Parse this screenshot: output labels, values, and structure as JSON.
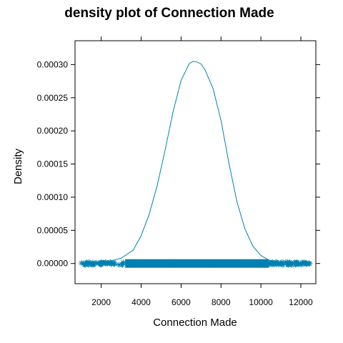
{
  "chart_data": {
    "type": "line",
    "title": "density plot of Connection Made",
    "xlabel": "Connection Made",
    "ylabel": "Density",
    "xlim": [
      688,
      12752
    ],
    "ylim": [
      -3.05e-05,
      0.000336
    ],
    "grid": false,
    "legend": "none",
    "colors": {
      "series": "#0080B0",
      "axis": "#000000",
      "background": "#FFFFFF"
    },
    "x_ticks": [
      2000,
      4000,
      6000,
      8000,
      10000,
      12000
    ],
    "x_tick_labels": [
      "2000",
      "4000",
      "6000",
      "8000",
      "10000",
      "12000"
    ],
    "y_ticks": [
      0,
      5e-05,
      0.0001,
      0.00015,
      0.0002,
      0.00025,
      0.0003
    ],
    "y_tick_labels": [
      "0.00000",
      "0.00005",
      "0.00010",
      "0.00015",
      "0.00020",
      "0.00025",
      "0.00030"
    ],
    "series": [
      {
        "x": [
          1240,
          1800,
          2400,
          3000,
          3600,
          4000,
          4400,
          4800,
          5200,
          5600,
          6000,
          6400,
          6600,
          6800,
          7000,
          7200,
          7600,
          8000,
          8400,
          8800,
          9200,
          9600,
          10000,
          10400,
          10800,
          11400,
          12300
        ],
        "y": [
          5e-07,
          1e-06,
          3e-06,
          8e-06,
          2e-05,
          4.2e-05,
          7.4e-05,
          0.000117,
          0.000171,
          0.000229,
          0.000276,
          0.000301,
          0.000305,
          0.000304,
          0.000301,
          0.000292,
          0.000264,
          0.000216,
          0.000151,
          9.3e-05,
          5.2e-05,
          2.6e-05,
          1.2e-05,
          5e-06,
          2.5e-06,
          1e-06,
          5e-07
        ]
      }
    ],
    "rug": {
      "marker": "asterisk",
      "y": 0,
      "range": [
        1000,
        12500
      ],
      "dense_range": [
        3200,
        10400
      ]
    }
  }
}
